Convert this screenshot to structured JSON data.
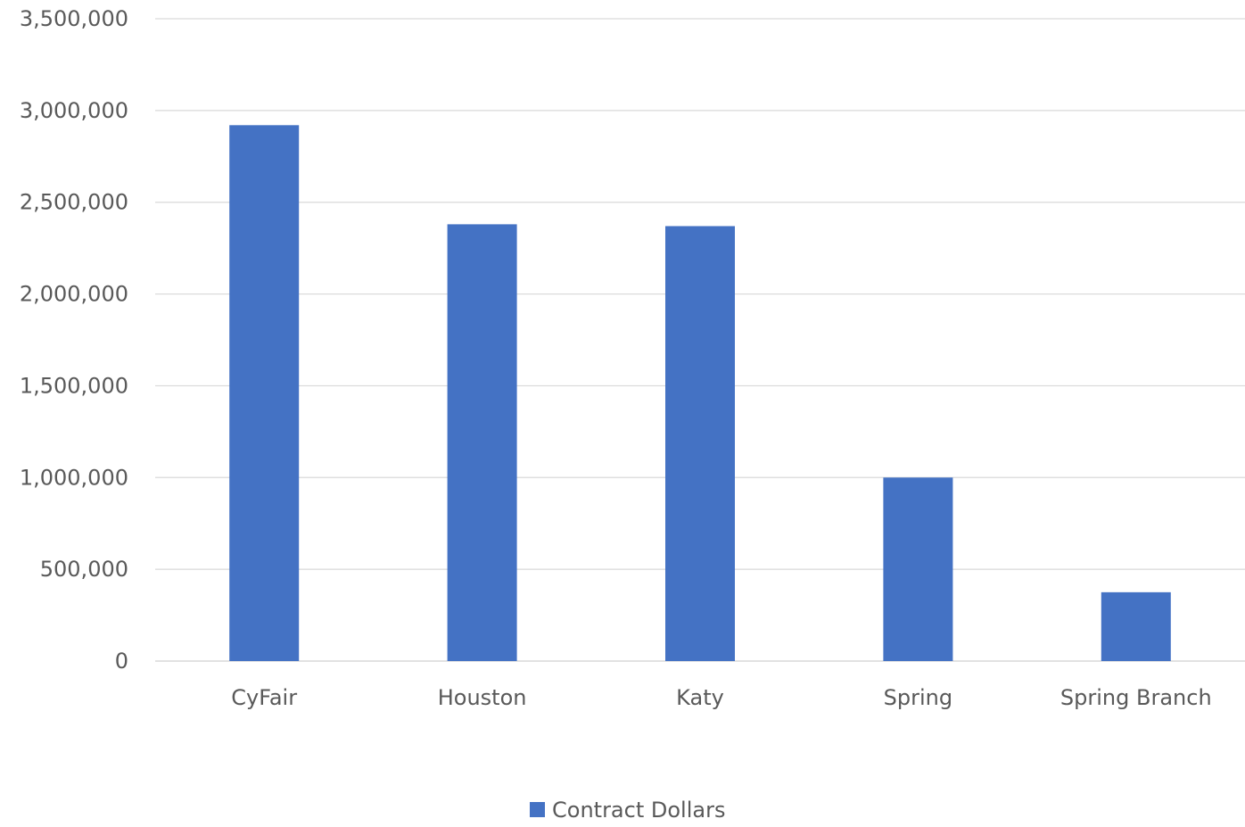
{
  "chart_data": {
    "type": "bar",
    "categories": [
      "CyFair",
      "Houston",
      "Katy",
      "Spring",
      "Spring Branch"
    ],
    "series": [
      {
        "name": "Contract Dollars",
        "values": [
          2920000,
          2380000,
          2370000,
          1000000,
          375000
        ],
        "color": "#4472C4"
      }
    ],
    "ylim": [
      0,
      3500000
    ],
    "yticks": [
      0,
      500000,
      1000000,
      1500000,
      2000000,
      2500000,
      3000000,
      3500000
    ],
    "ytick_labels": [
      "0",
      "500,000",
      "1,000,000",
      "1,500,000",
      "2,000,000",
      "2,500,000",
      "3,000,000",
      "3,500,000"
    ],
    "grid": true,
    "legend_position": "bottom",
    "colors": {
      "bar": "#4472C4",
      "grid": "#D9D9D9",
      "text": "#595959"
    }
  }
}
